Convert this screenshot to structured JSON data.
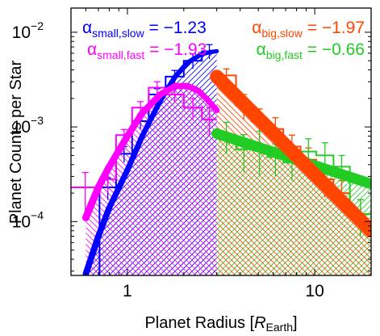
{
  "chart_data": {
    "type": "line",
    "xlabel": {
      "prefix": "Planet Radius [",
      "var": "R",
      "sub": "Earth",
      "suffix": "]"
    },
    "ylabel": "Planet Counts per Star",
    "x_scale": "log",
    "y_scale": "log",
    "xlim": [
      0.5,
      20
    ],
    "ylim": [
      2.7e-05,
      0.018
    ],
    "x_ticks": [
      {
        "value": 1,
        "label": "1"
      },
      {
        "value": 10,
        "label": "10"
      }
    ],
    "y_ticks": [
      {
        "value": 0.01,
        "base": "10",
        "exp": "−2"
      },
      {
        "value": 0.001,
        "base": "10",
        "exp": "−3"
      },
      {
        "value": 0.0001,
        "base": "10",
        "exp": "−4"
      }
    ],
    "annotations": [
      {
        "id": "small-slow",
        "symbol": "α",
        "sub": "small,slow",
        "text": " = −1.23",
        "color": "#0000ff",
        "anchor": "start"
      },
      {
        "id": "small-fast",
        "symbol": "α",
        "sub": "small,fast",
        "text": " = −1.93",
        "color": "#ff00ff",
        "anchor": "start"
      },
      {
        "id": "big-slow",
        "symbol": "α",
        "sub": "big,slow",
        "text": " = −1.97",
        "color": "#ff4500",
        "anchor": "end"
      },
      {
        "id": "big-fast",
        "symbol": "α",
        "sub": "big,fast",
        "text": " = −0.66",
        "color": "#22cc22",
        "anchor": "end"
      }
    ],
    "histograms": [
      {
        "id": "small-slow",
        "color": "#0000ff",
        "edges": [
          0.5,
          0.71,
          0.87,
          1.06,
          1.3,
          1.6,
          2.0,
          2.5,
          3.0
        ],
        "values": [
          0.0,
          0.00023,
          0.00052,
          0.00115,
          0.0022,
          0.0034,
          0.005,
          0.0063
        ],
        "errors": [
          0.0,
          6e-05,
          0.0001,
          0.0002,
          0.00033,
          0.00055,
          0.0009,
          0.0011
        ]
      },
      {
        "id": "small-fast",
        "color": "#ff00ff",
        "edges": [
          0.5,
          0.71,
          0.87,
          1.06,
          1.3,
          1.6,
          2.0,
          2.5,
          3.0
        ],
        "values": [
          0.00023,
          0.00028,
          0.00082,
          0.0016,
          0.0026,
          0.0022,
          0.0016,
          0.0012
        ],
        "errors": [
          0.0001,
          8e-05,
          0.00012,
          0.00025,
          0.0004,
          0.0004,
          0.0004,
          0.0004
        ]
      },
      {
        "id": "big-slow",
        "color": "#ff4500",
        "edges": [
          3.0,
          3.8,
          4.6,
          5.6,
          6.8,
          8.4,
          10.2,
          12.6,
          15.4,
          20.0
        ],
        "values": [
          0.0035,
          0.0017,
          0.00115,
          0.00095,
          0.00062,
          0.00045,
          0.00028,
          0.0002,
          0.00012
        ],
        "errors": [
          0.0006,
          0.0005,
          0.0004,
          0.0003,
          0.0002,
          0.00015,
          0.0001,
          7e-05,
          5e-05
        ]
      },
      {
        "id": "big-fast",
        "color": "#22cc22",
        "edges": [
          3.0,
          3.8,
          4.6,
          5.6,
          6.8,
          8.4,
          10.2,
          12.6,
          15.4,
          20.0
        ],
        "values": [
          0.00082,
          0.00058,
          0.0006,
          0.00048,
          0.00042,
          0.00055,
          0.0005,
          0.00038,
          0.00012
        ],
        "errors": [
          0.0003,
          0.00025,
          0.0003,
          0.00018,
          0.00015,
          0.0002,
          0.00018,
          0.00012,
          5e-05
        ]
      }
    ],
    "fits": [
      {
        "id": "small-slow",
        "color": "#0000ff",
        "width_low": 8,
        "width_high": 5,
        "x": [
          0.6,
          0.7,
          0.8,
          1.0,
          1.2,
          1.5,
          1.8,
          2.1,
          2.5,
          2.8,
          3.0
        ],
        "y": [
          2.8e-05,
          7e-05,
          0.00014,
          0.00035,
          0.0008,
          0.0019,
          0.0034,
          0.0048,
          0.0059,
          0.0062,
          0.0063
        ]
      },
      {
        "id": "small-fast",
        "color": "#ff00ff",
        "width_low": 9,
        "width_high": 7,
        "x": [
          0.6,
          0.7,
          0.8,
          1.0,
          1.2,
          1.5,
          1.8,
          2.1,
          2.4,
          2.7,
          3.0
        ],
        "y": [
          0.00011,
          0.00023,
          0.00038,
          0.0008,
          0.0014,
          0.0022,
          0.0027,
          0.0027,
          0.0024,
          0.0019,
          0.0015
        ]
      },
      {
        "id": "big-fast",
        "color": "#22cc22",
        "width_low": 10,
        "width_high": 16,
        "x": [
          3.0,
          20.0
        ],
        "y": [
          0.00085,
          0.00025
        ]
      },
      {
        "id": "big-slow",
        "color": "#ff4500",
        "width_low": 12,
        "width_high": 22,
        "x": [
          3.0,
          20.0
        ],
        "y": [
          0.0034,
          8e-05
        ]
      }
    ]
  }
}
